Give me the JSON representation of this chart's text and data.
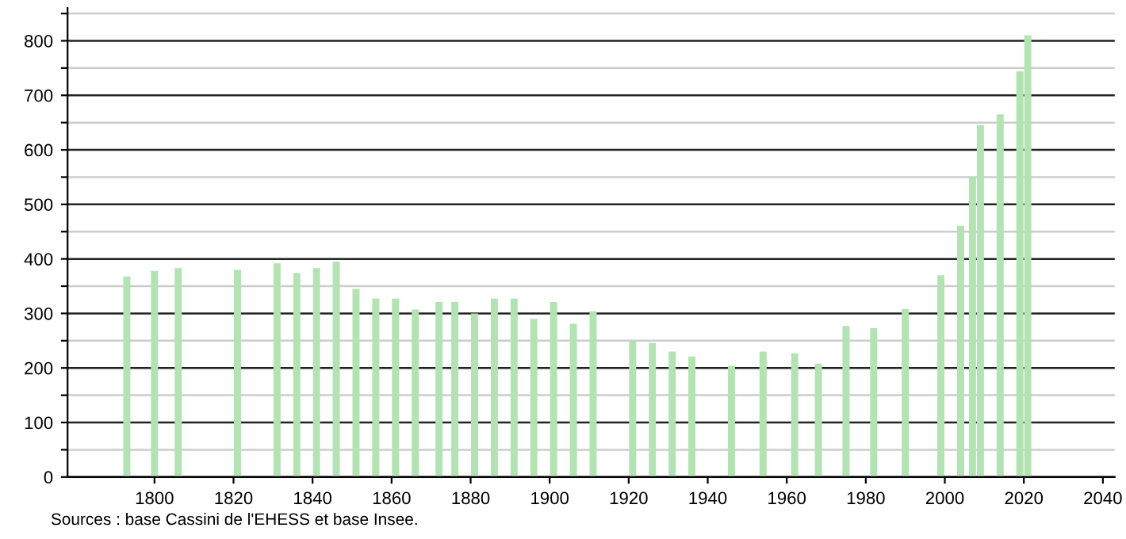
{
  "chart_data": {
    "type": "bar",
    "x": [
      1793,
      1800,
      1806,
      1821,
      1831,
      1836,
      1841,
      1846,
      1851,
      1856,
      1861,
      1866,
      1872,
      1876,
      1881,
      1886,
      1891,
      1896,
      1901,
      1906,
      1911,
      1921,
      1926,
      1931,
      1936,
      1946,
      1954,
      1962,
      1968,
      1975,
      1982,
      1990,
      1999,
      2004,
      2007,
      2009,
      2014,
      2019,
      2021
    ],
    "values": [
      368,
      378,
      383,
      380,
      392,
      374,
      383,
      395,
      345,
      327,
      327,
      307,
      321,
      321,
      300,
      327,
      327,
      290,
      321,
      281,
      304,
      249,
      246,
      230,
      221,
      204,
      230,
      227,
      208,
      277,
      273,
      308,
      370,
      461,
      550,
      645,
      665,
      744,
      810
    ],
    "color": "#b3e3b3",
    "xlim": [
      1778,
      2043
    ],
    "xticks": [
      1800,
      1820,
      1840,
      1860,
      1880,
      1900,
      1920,
      1940,
      1960,
      1980,
      2000,
      2020,
      2040
    ],
    "ylim": [
      0,
      860
    ],
    "yticks": [
      0,
      {
        "value": 50,
        "label": null
      },
      100,
      {
        "value": 150,
        "label": null
      },
      200,
      {
        "value": 250,
        "label": null
      },
      300,
      {
        "value": 350,
        "label": null
      },
      400,
      {
        "value": 450,
        "label": null
      },
      500,
      {
        "value": 550,
        "label": null
      },
      600,
      {
        "value": 650,
        "label": null
      },
      700,
      {
        "value": 750,
        "label": null
      },
      800,
      {
        "value": 850,
        "label": null
      }
    ],
    "grid": "y",
    "annotations": [
      "Sources : base Cassini de l'EHESS et base Insee."
    ]
  }
}
